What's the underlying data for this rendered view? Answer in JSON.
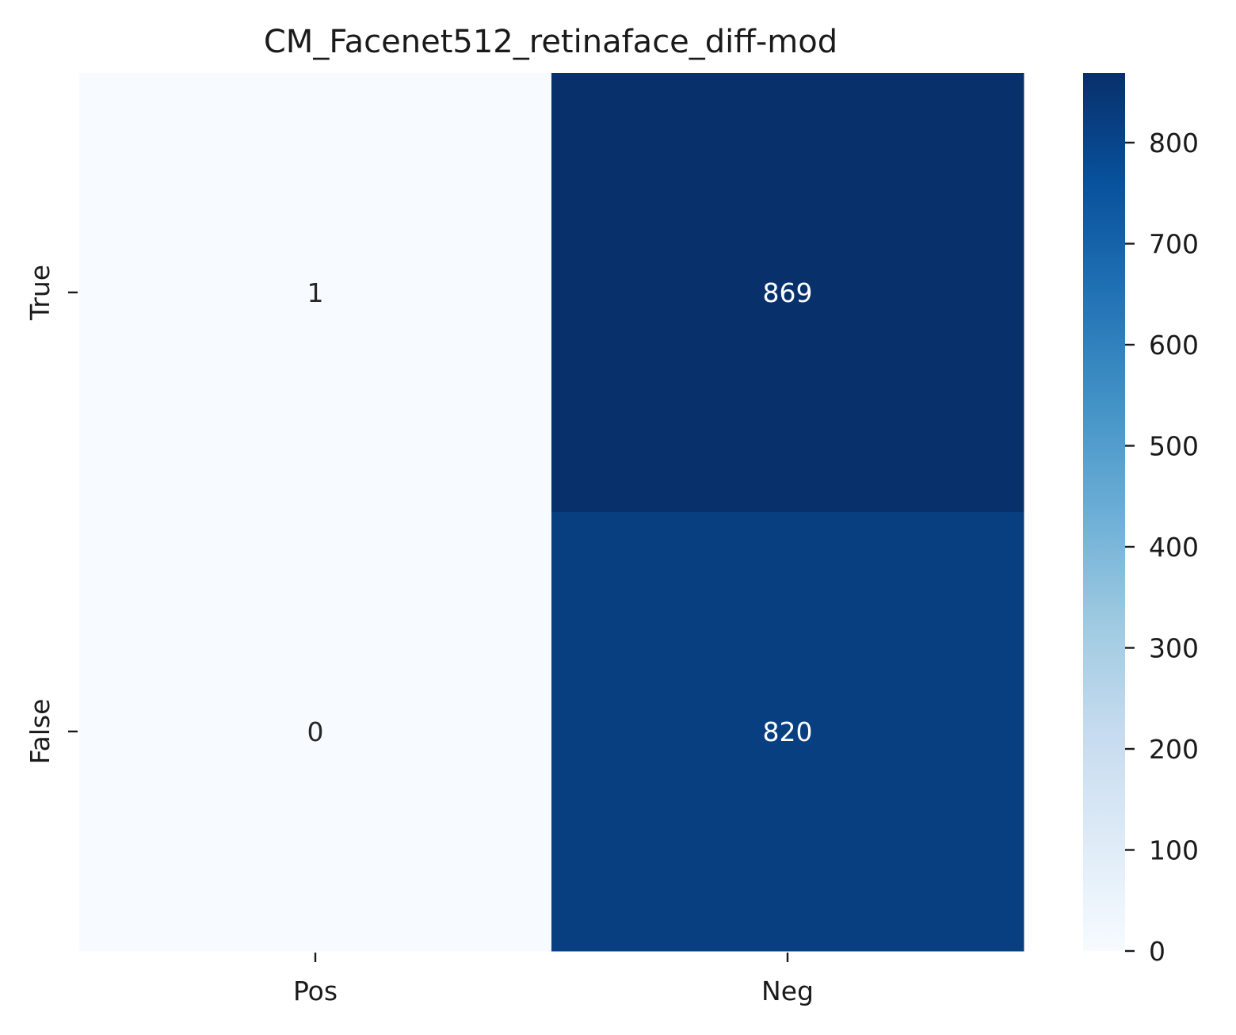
{
  "chart_data": {
    "type": "heatmap",
    "title": "CM_Facenet512_retinaface_diff-mod",
    "xlabel": "",
    "ylabel": "",
    "x_categories": [
      "Pos",
      "Neg"
    ],
    "y_categories": [
      "True",
      "False"
    ],
    "values": [
      [
        1,
        869
      ],
      [
        0,
        820
      ]
    ],
    "colormap": "Blues",
    "colorbar": {
      "min": 0,
      "max": 869,
      "ticks": [
        0,
        100,
        200,
        300,
        400,
        500,
        600,
        700,
        800
      ]
    },
    "annotation_colors": {
      "light_cell": "#262626",
      "dark_cell": "#ffffff"
    }
  }
}
